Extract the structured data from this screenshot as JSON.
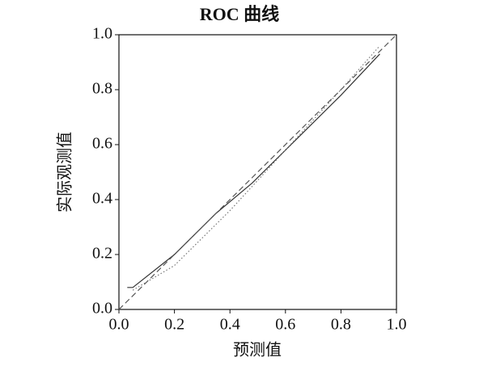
{
  "chart_data": {
    "type": "line",
    "title": "ROC 曲线",
    "x_label": "预测值",
    "y_label": "实际观测值",
    "xlim": [
      0,
      1
    ],
    "ylim": [
      0,
      1
    ],
    "xticks": [
      {
        "value": 0,
        "label": "0.0"
      },
      0.2,
      0.4,
      0.6,
      0.8,
      {
        "value": 1,
        "label": "1.0"
      }
    ],
    "yticks": [
      {
        "value": 0,
        "label": "0.0"
      },
      0.2,
      0.4,
      0.6,
      0.8,
      {
        "value": 1,
        "label": "1.0"
      }
    ],
    "grid": false,
    "series": [
      {
        "color": "#333333",
        "style": "solid",
        "x": [
          0.03,
          0.05,
          0.2,
          0.35,
          0.48,
          0.6,
          0.8,
          0.94
        ],
        "values": [
          0.08,
          0.08,
          0.2,
          0.35,
          0.46,
          0.58,
          0.78,
          0.93
        ]
      },
      {
        "color": "#555555",
        "style": "dashed",
        "x": [
          0,
          1
        ],
        "values": [
          0,
          1
        ]
      },
      {
        "color": "#777777",
        "style": "dotted",
        "x": [
          0.05,
          0.2,
          0.4,
          0.6,
          0.8,
          0.94
        ],
        "values": [
          0.07,
          0.16,
          0.36,
          0.58,
          0.8,
          0.96
        ]
      }
    ]
  }
}
